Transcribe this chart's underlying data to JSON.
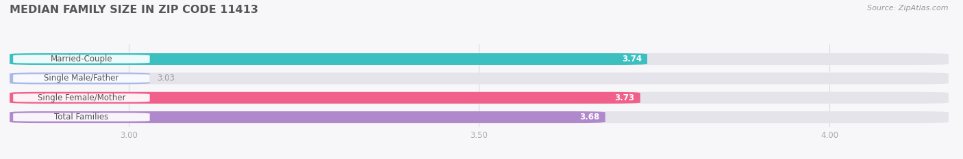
{
  "title": "MEDIAN FAMILY SIZE IN ZIP CODE 11413",
  "source": "Source: ZipAtlas.com",
  "categories": [
    "Married-Couple",
    "Single Male/Father",
    "Single Female/Mother",
    "Total Families"
  ],
  "values": [
    3.74,
    3.03,
    3.73,
    3.68
  ],
  "colors": [
    "#3bbfbf",
    "#aab8e8",
    "#f0608a",
    "#b088cc"
  ],
  "bar_background": "#e4e4ea",
  "xlim_min": 2.83,
  "xlim_max": 4.17,
  "xticks": [
    3.0,
    3.5,
    4.0
  ],
  "xtick_labels": [
    "3.00",
    "3.50",
    "4.00"
  ],
  "bar_height": 0.6,
  "background_color": "#f7f7fa",
  "title_fontsize": 11.5,
  "label_fontsize": 8.5,
  "value_fontsize": 8.5,
  "source_fontsize": 8.0,
  "label_pill_color": "#ffffff",
  "label_text_color": "#555555",
  "value_outside_color": "#999999",
  "grid_color": "#d8d8de",
  "tick_color": "#aaaaaa"
}
